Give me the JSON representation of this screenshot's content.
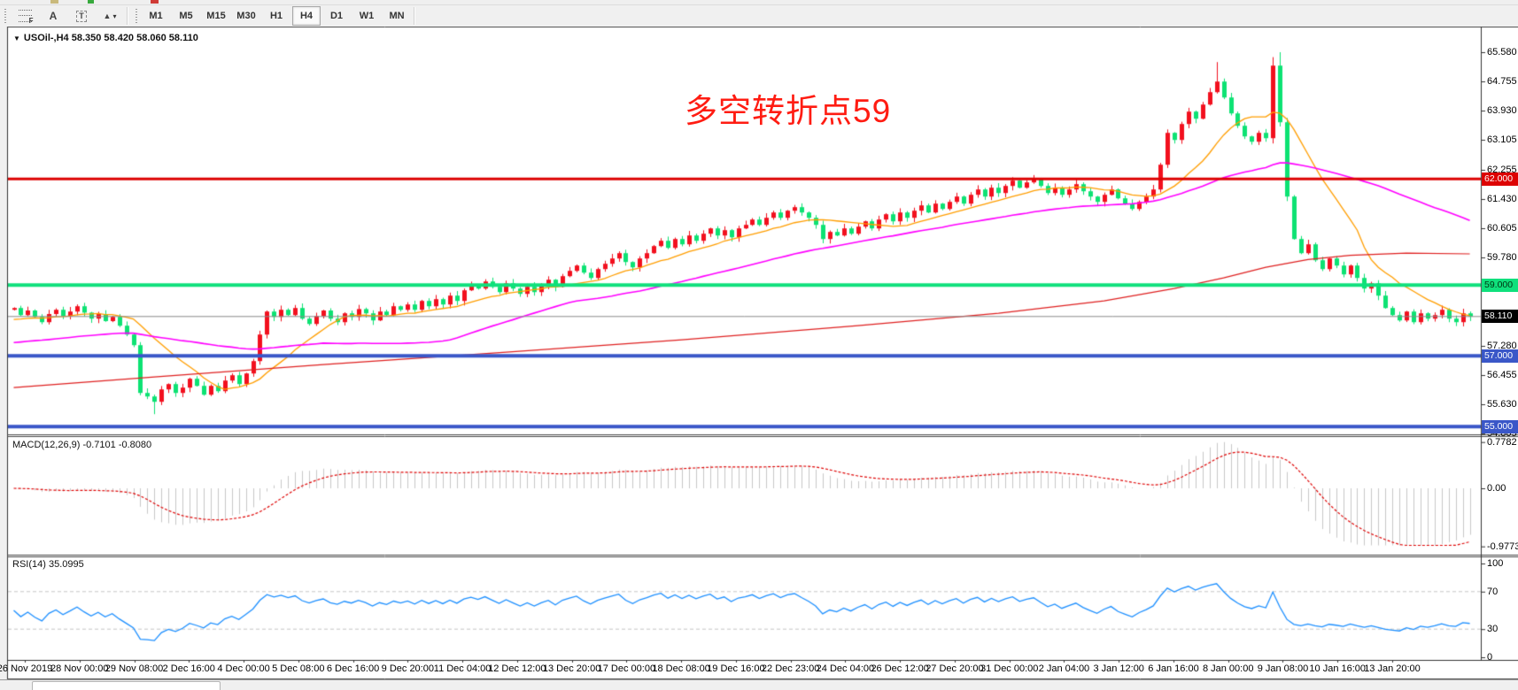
{
  "window": {
    "sliver_fragments": [
      {
        "x": 57,
        "w": 9,
        "color": "#c9b97c"
      },
      {
        "x": 99,
        "w": 7,
        "color": "#37a93c"
      },
      {
        "x": 170,
        "w": 9,
        "color": "#cf3a35"
      }
    ]
  },
  "toolbar": {
    "tools": [
      {
        "id": "fibonacci",
        "label": "F"
      },
      {
        "id": "text",
        "label": "A"
      },
      {
        "id": "text-label",
        "label": "T"
      },
      {
        "id": "arrows",
        "label": "▲"
      }
    ],
    "dropdown_caret": "▾",
    "timeframes": [
      "M1",
      "M5",
      "M15",
      "M30",
      "H1",
      "H4",
      "D1",
      "W1",
      "MN"
    ],
    "active_timeframe": "H4"
  },
  "chart": {
    "symbol_dropdown": "▼",
    "symbol_header": "USOil-,H4  58.350 58.420 58.060 58.110",
    "annotation": "多空转折点59",
    "annotation_color": "#ff1c12",
    "y_ticks": [
      {
        "label": "65.580",
        "price": 65.58
      },
      {
        "label": "64.755",
        "price": 64.755
      },
      {
        "label": "63.930",
        "price": 63.93
      },
      {
        "label": "63.105",
        "price": 63.105
      },
      {
        "label": "62.255",
        "price": 62.255
      },
      {
        "label": "61.430",
        "price": 61.43
      },
      {
        "label": "60.605",
        "price": 60.605
      },
      {
        "label": "59.780",
        "price": 59.78
      },
      {
        "label": "57.280",
        "price": 57.28
      },
      {
        "label": "56.455",
        "price": 56.455
      },
      {
        "label": "55.630",
        "price": 55.63
      },
      {
        "label": "54.805",
        "price": 54.805
      }
    ],
    "price_badges": [
      {
        "label": "62.000",
        "price": 62.0,
        "bg": "#dd0202",
        "fg": "#ffffff"
      },
      {
        "label": "59.000",
        "price": 59.0,
        "bg": "#0fe07c",
        "fg": "#003311"
      },
      {
        "label": "58.110",
        "price": 58.11,
        "bg": "#000000",
        "fg": "#ffffff"
      },
      {
        "label": "57.000",
        "price": 57.0,
        "bg": "#3a57c8",
        "fg": "#ffffff"
      },
      {
        "label": "55.000",
        "price": 55.0,
        "bg": "#3a57c8",
        "fg": "#ffffff"
      }
    ],
    "levels": [
      {
        "price": 62.0,
        "color": "#dd0202",
        "width": 3
      },
      {
        "price": 59.0,
        "color": "#0fe07c",
        "width": 4
      },
      {
        "price": 57.0,
        "color": "#3a57c8",
        "width": 4
      },
      {
        "price": 55.0,
        "color": "#3a57c8",
        "width": 4
      }
    ],
    "current_price_line": {
      "price": 58.11,
      "color": "#8a8a8a",
      "width": 1
    }
  },
  "macd_panel": {
    "label": "MACD(12,26,9) -0.7101 -0.8080",
    "y_ticks": [
      {
        "label": "0.7782",
        "value": 0.7782
      },
      {
        "label": "0.00",
        "value": 0.0
      },
      {
        "label": "-0.9773",
        "value": -0.9773
      }
    ],
    "histogram_color": "#c8c8c8",
    "signal_color": "#df0404"
  },
  "rsi_panel": {
    "label": "RSI(14) 35.0995",
    "y_ticks": [
      {
        "label": "100",
        "value": 100
      },
      {
        "label": "70",
        "value": 70
      },
      {
        "label": "30",
        "value": 30
      },
      {
        "label": "0",
        "value": 0
      }
    ],
    "levels": [
      70,
      30
    ],
    "line_color": "#1e90ff",
    "level_color": "#c6c6c6"
  },
  "x_axis": {
    "labels": [
      "26 Nov 2019",
      "28 Nov 00:00",
      "29 Nov 08:00",
      "2 Dec 16:00",
      "4 Dec 00:00",
      "5 Dec 08:00",
      "6 Dec 16:00",
      "9 Dec 20:00",
      "11 Dec 04:00",
      "12 Dec 12:00",
      "13 Dec 20:00",
      "17 Dec 00:00",
      "18 Dec 08:00",
      "19 Dec 16:00",
      "22 Dec 23:00",
      "24 Dec 04:00",
      "26 Dec 12:00",
      "27 Dec 20:00",
      "31 Dec 00:00",
      "2 Jan 04:00",
      "3 Jan 12:00",
      "6 Jan 16:00",
      "8 Jan 00:00",
      "9 Jan 08:00",
      "10 Jan 16:00",
      "13 Jan 20:00"
    ]
  },
  "chart_data": {
    "type": "candlestick",
    "symbol": "USOil-",
    "timeframe": "H4",
    "ohlc_display": {
      "open": "58.350",
      "high": "58.420",
      "low": "58.060",
      "close": "58.110"
    },
    "price_axis": {
      "top_label": 65.58,
      "bottom_label": 54.805,
      "tick_step": 0.825
    },
    "up_color": "#f2101e",
    "down_color": "#0de273",
    "closes": [
      58.35,
      58.15,
      58.28,
      58.1,
      57.95,
      58.18,
      58.3,
      58.12,
      58.25,
      58.4,
      58.22,
      58.05,
      58.18,
      57.98,
      58.1,
      57.85,
      57.6,
      57.3,
      55.95,
      55.85,
      55.7,
      56.05,
      56.2,
      55.95,
      56.1,
      56.35,
      56.15,
      55.9,
      56.15,
      56.0,
      56.3,
      56.45,
      56.2,
      56.5,
      56.85,
      57.6,
      58.25,
      58.1,
      58.3,
      58.15,
      58.35,
      58.05,
      57.9,
      58.12,
      58.28,
      58.05,
      57.95,
      58.2,
      58.1,
      58.32,
      58.2,
      58.0,
      58.25,
      58.15,
      58.4,
      58.3,
      58.45,
      58.3,
      58.55,
      58.4,
      58.6,
      58.45,
      58.7,
      58.55,
      58.85,
      59.0,
      58.9,
      59.1,
      58.95,
      58.8,
      59.05,
      58.9,
      58.75,
      58.95,
      58.8,
      59.0,
      59.15,
      58.95,
      59.25,
      59.4,
      59.55,
      59.35,
      59.2,
      59.45,
      59.6,
      59.75,
      59.9,
      59.65,
      59.5,
      59.75,
      59.9,
      60.1,
      60.25,
      60.05,
      60.3,
      60.15,
      60.4,
      60.25,
      60.45,
      60.6,
      60.4,
      60.55,
      60.35,
      60.6,
      60.7,
      60.85,
      60.7,
      60.9,
      61.05,
      60.9,
      61.1,
      61.2,
      61.05,
      60.9,
      60.7,
      60.3,
      60.5,
      60.4,
      60.6,
      60.45,
      60.65,
      60.8,
      60.6,
      60.85,
      61.0,
      60.8,
      61.05,
      60.9,
      61.1,
      61.25,
      61.05,
      61.3,
      61.15,
      61.35,
      61.5,
      61.3,
      61.55,
      61.7,
      61.5,
      61.75,
      61.6,
      61.8,
      61.95,
      61.75,
      61.9,
      62.0,
      61.8,
      61.6,
      61.75,
      61.55,
      61.7,
      61.85,
      61.65,
      61.5,
      61.35,
      61.55,
      61.7,
      61.45,
      61.3,
      61.15,
      61.35,
      61.5,
      61.7,
      62.4,
      63.3,
      63.1,
      63.55,
      63.9,
      63.7,
      64.1,
      64.45,
      64.75,
      64.3,
      63.85,
      63.5,
      63.2,
      63.05,
      63.3,
      63.15,
      65.2,
      63.6,
      61.5,
      60.3,
      59.9,
      60.15,
      59.7,
      59.45,
      59.75,
      59.55,
      59.3,
      59.55,
      59.2,
      58.9,
      59.05,
      58.7,
      58.35,
      58.15,
      58.0,
      58.25,
      57.95,
      58.2,
      58.05,
      58.15,
      58.3,
      58.05,
      57.95,
      58.2,
      58.11
    ],
    "wick_overrides": {
      "20": {
        "low": 55.35
      },
      "171": {
        "high": 65.3
      },
      "179": {
        "high": 65.44,
        "low": 63.0
      },
      "180": {
        "high": 65.58
      }
    },
    "moving_averages": [
      {
        "name": "fast",
        "color": "#ff9e00",
        "type": "sma",
        "window": 13,
        "seed": 58.0,
        "lw": 1.3
      },
      {
        "name": "medium",
        "color": "#ff00ff",
        "type": "sma",
        "window": 45,
        "seed": 57.35,
        "lw": 1.6
      },
      {
        "name": "slow",
        "color": "#df2020",
        "type": "keypoints",
        "lw": 1.2,
        "points": [
          [
            0,
            56.1
          ],
          [
            20,
            56.4
          ],
          [
            44,
            56.75
          ],
          [
            70,
            57.1
          ],
          [
            95,
            57.45
          ],
          [
            120,
            57.85
          ],
          [
            140,
            58.2
          ],
          [
            155,
            58.55
          ],
          [
            165,
            58.9
          ],
          [
            172,
            59.2
          ],
          [
            178,
            59.5
          ],
          [
            184,
            59.72
          ],
          [
            190,
            59.84
          ],
          [
            198,
            59.9
          ],
          [
            207,
            59.88
          ]
        ]
      }
    ],
    "macd": {
      "fast": 12,
      "slow": 26,
      "signal": 9,
      "current": -0.7101,
      "current_signal": -0.808
    },
    "rsi": {
      "period": 14,
      "current": 35.0995
    }
  }
}
